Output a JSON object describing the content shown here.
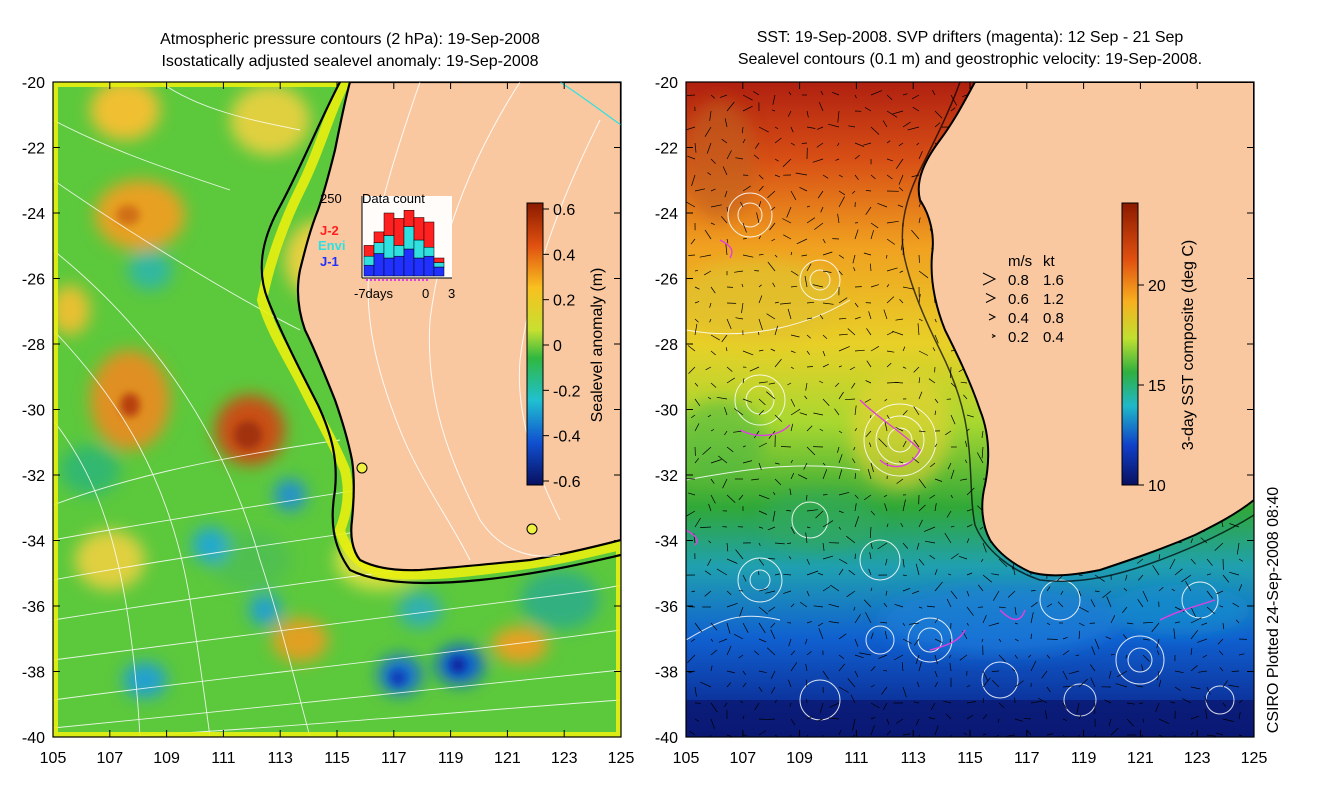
{
  "left_panel": {
    "title_line1": "Atmospheric pressure contours (2 hPa): 19-Sep-2008",
    "title_line2": "Isostatically adjusted sealevel anomaly: 19-Sep-2008",
    "y_ticks": [
      "-20",
      "-22",
      "-24",
      "-26",
      "-28",
      "-30",
      "-32",
      "-34",
      "-36",
      "-38",
      "-40"
    ],
    "x_ticks": [
      "105",
      "107",
      "109",
      "111",
      "113",
      "115",
      "117",
      "119",
      "121",
      "123",
      "125"
    ],
    "colorbar": {
      "label": "Sealevel anomaly (m)",
      "ticks": [
        "0.6",
        "0.4",
        "0.2",
        "0",
        "-0.2",
        "-0.4",
        "-0.6"
      ]
    },
    "inset": {
      "title": "Data count",
      "max_label": "250",
      "x_left": "-7days",
      "x_mid": "0",
      "x_right": "3",
      "legend": [
        {
          "label": "J-2",
          "color": "#ff2020"
        },
        {
          "label": "Envi",
          "color": "#30e0e0"
        },
        {
          "label": "J-1",
          "color": "#2030ff"
        }
      ],
      "bars": [
        {
          "j1": 0.12,
          "envi": 0.1,
          "j2": 0.12
        },
        {
          "j1": 0.25,
          "envi": 0.12,
          "j2": 0.12
        },
        {
          "j1": 0.2,
          "envi": 0.25,
          "j2": 0.25
        },
        {
          "j1": 0.22,
          "envi": 0.12,
          "j2": 0.3
        },
        {
          "j1": 0.3,
          "envi": 0.25,
          "j2": 0.18
        },
        {
          "j1": 0.2,
          "envi": 0.2,
          "j2": 0.25
        },
        {
          "j1": 0.22,
          "envi": 0.1,
          "j2": 0.28
        },
        {
          "j1": 0.1,
          "envi": 0.05,
          "j2": 0.05
        }
      ]
    }
  },
  "right_panel": {
    "title_line1": "SST: 19-Sep-2008. SVP drifters (magenta): 12 Sep - 21 Sep",
    "title_line2": "Sealevel contours (0.1 m) and geostrophic velocity: 19-Sep-2008.",
    "y_ticks": [
      "-20",
      "-22",
      "-24",
      "-26",
      "-28",
      "-30",
      "-32",
      "-34",
      "-36",
      "-38",
      "-40"
    ],
    "x_ticks": [
      "105",
      "107",
      "109",
      "111",
      "113",
      "115",
      "117",
      "119",
      "121",
      "123",
      "125"
    ],
    "colorbar": {
      "label": "3-day SST composite (deg C)",
      "ticks": [
        "20",
        "15",
        "10"
      ]
    },
    "velocity_legend": {
      "header_ms": "m/s",
      "header_kt": "kt",
      "rows": [
        {
          "ms": "0.8",
          "kt": "1.6"
        },
        {
          "ms": "0.6",
          "kt": "1.2"
        },
        {
          "ms": "0.4",
          "kt": "0.8"
        },
        {
          "ms": "0.2",
          "kt": "0.4"
        }
      ]
    }
  },
  "credit": "CSIRO Plotted 24-Sep-2008 08:40",
  "colors": {
    "land": "#f9c8a0",
    "coast": "#000000",
    "contour": "#ffffff",
    "drifter": "#e040e0",
    "frame": "#000000"
  }
}
